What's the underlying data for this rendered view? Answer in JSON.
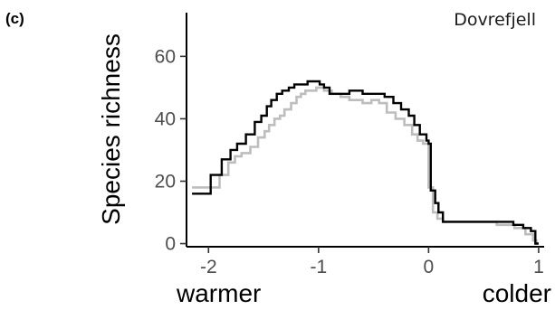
{
  "panel_label": "(c)",
  "chart_data": {
    "type": "line",
    "title": "Dovrefjell",
    "xlabel": "",
    "ylabel": "Species richness",
    "x_end_labels": {
      "left": "warmer",
      "right": "colder"
    },
    "xlim": [
      -2.2,
      1.05
    ],
    "ylim": [
      -1,
      74
    ],
    "xticks": [
      -2,
      -1,
      0,
      1
    ],
    "xtick_labels": [
      "-2",
      "-1",
      "0",
      "1"
    ],
    "yticks": [
      0,
      20,
      40,
      60
    ],
    "ytick_labels": [
      "0",
      "20",
      "40",
      "60"
    ],
    "grid": false,
    "legend": "none",
    "step": true,
    "series": [
      {
        "color": "#bdbdbd",
        "x": [
          -2.15,
          -1.98,
          -1.9,
          -1.82,
          -1.76,
          -1.7,
          -1.62,
          -1.55,
          -1.49,
          -1.45,
          -1.4,
          -1.35,
          -1.31,
          -1.25,
          -1.2,
          -1.16,
          -1.12,
          -1.08,
          -1.02,
          -0.95,
          -0.88,
          -0.8,
          -0.72,
          -0.6,
          -0.52,
          -0.45,
          -0.38,
          -0.3,
          -0.22,
          -0.15,
          -0.1,
          -0.05,
          0.0,
          0.04,
          0.08,
          0.13,
          0.3,
          0.5,
          0.62,
          0.78,
          0.88,
          0.95,
          0.98,
          1.0
        ],
        "y": [
          18,
          18,
          22,
          26,
          28,
          29,
          31,
          34,
          36,
          38,
          40,
          41,
          43,
          45,
          47,
          48,
          49,
          49,
          50,
          49,
          48,
          47,
          46,
          45,
          46,
          45,
          42,
          40,
          38,
          35,
          33,
          32,
          18,
          10,
          8,
          7,
          7,
          7,
          6,
          5,
          3,
          1,
          0,
          0
        ]
      },
      {
        "color": "#000000",
        "x": [
          -2.15,
          -1.98,
          -1.88,
          -1.8,
          -1.74,
          -1.66,
          -1.58,
          -1.52,
          -1.47,
          -1.43,
          -1.38,
          -1.33,
          -1.27,
          -1.22,
          -1.18,
          -1.14,
          -1.1,
          -1.05,
          -0.99,
          -0.95,
          -0.9,
          -0.83,
          -0.72,
          -0.6,
          -0.5,
          -0.4,
          -0.32,
          -0.25,
          -0.18,
          -0.13,
          -0.08,
          -0.02,
          0.0,
          0.02,
          0.06,
          0.09,
          0.13,
          0.3,
          0.45,
          0.62,
          0.77,
          0.86,
          0.93,
          0.97,
          1.0
        ],
        "y": [
          16,
          22,
          27,
          30,
          32,
          35,
          39,
          41,
          44,
          46,
          48,
          49,
          50,
          51,
          51,
          51,
          52,
          52,
          51,
          50,
          48,
          48,
          49,
          48,
          48,
          47,
          45,
          43,
          41,
          38,
          35,
          33,
          32,
          17,
          13,
          10,
          7,
          7,
          7,
          7,
          6,
          5,
          4,
          0,
          0
        ]
      }
    ]
  }
}
